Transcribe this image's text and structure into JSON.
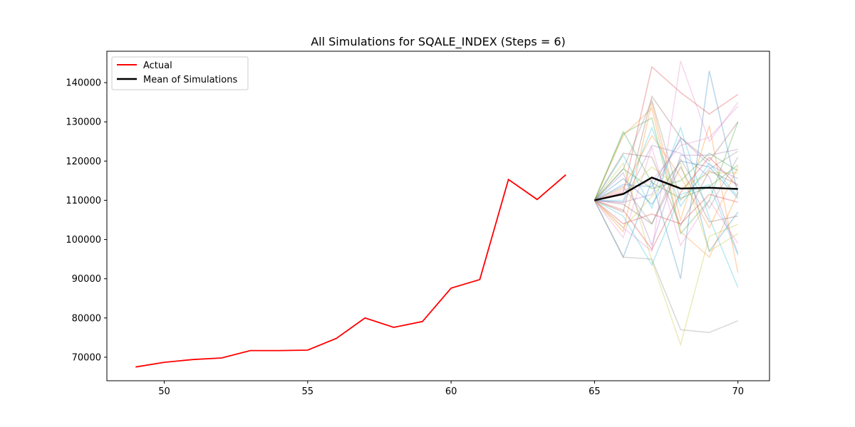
{
  "chart_data": {
    "type": "line",
    "title": "All Simulations for SQALE_INDEX (Steps = 6)",
    "xlabel": "",
    "ylabel": "",
    "xlim": [
      48,
      71.1
    ],
    "ylim": [
      64000,
      148000
    ],
    "x_ticks": [
      50,
      55,
      60,
      65,
      70
    ],
    "y_ticks": [
      70000,
      80000,
      90000,
      100000,
      110000,
      120000,
      130000,
      140000
    ],
    "legend": {
      "position": "top-left",
      "entries": [
        "Actual",
        "Mean of Simulations"
      ]
    },
    "grid": false,
    "actual": {
      "name": "Actual",
      "color": "#ff0000",
      "x": [
        49,
        50,
        51,
        52,
        53,
        54,
        55,
        56,
        57,
        58,
        59,
        60,
        61,
        62,
        63,
        64
      ],
      "y": [
        67500,
        68700,
        69400,
        69800,
        71700,
        71700,
        71800,
        74800,
        80000,
        77600,
        79100,
        87600,
        89800,
        115300,
        110200,
        116500
      ]
    },
    "mean": {
      "name": "Mean of Simulations",
      "color": "#000000",
      "x": [
        65,
        66,
        67,
        68,
        69,
        70
      ],
      "y": [
        110000,
        111600,
        115800,
        113000,
        113200,
        112900
      ]
    },
    "simulations": {
      "x": [
        65,
        66,
        67,
        68,
        69,
        70
      ],
      "series": [
        {
          "color": "#1f77b4",
          "values": [
            110000,
            95500,
            115000,
            90000,
            143000,
            111500
          ]
        },
        {
          "color": "#ff7f0e",
          "values": [
            110000,
            102000,
            135000,
            105000,
            129000,
            91500
          ]
        },
        {
          "color": "#2ca02c",
          "values": [
            110000,
            127000,
            131000,
            101500,
            110000,
            130000
          ]
        },
        {
          "color": "#d62728",
          "values": [
            110000,
            112000,
            144000,
            137500,
            132000,
            137000
          ]
        },
        {
          "color": "#9467bd",
          "values": [
            110000,
            109500,
            124000,
            122000,
            116000,
            96500
          ]
        },
        {
          "color": "#8c564b",
          "values": [
            110000,
            107000,
            136500,
            126000,
            120000,
            130000
          ]
        },
        {
          "color": "#e377c2",
          "values": [
            110000,
            103000,
            97000,
            145500,
            125000,
            135000
          ]
        },
        {
          "color": "#7f7f7f",
          "values": [
            110000,
            95500,
            95000,
            77000,
            76300,
            79300
          ]
        },
        {
          "color": "#bcbd22",
          "values": [
            110000,
            119500,
            94500,
            73200,
            100800,
            103900
          ]
        },
        {
          "color": "#17becf",
          "values": [
            110000,
            121500,
            108000,
            128500,
            105500,
            87800
          ]
        },
        {
          "color": "#1f77b4",
          "values": [
            110000,
            114000,
            113500,
            125500,
            97000,
            107000
          ]
        },
        {
          "color": "#ff7f0e",
          "values": [
            110000,
            126500,
            133500,
            102000,
            95500,
            112000
          ]
        },
        {
          "color": "#2ca02c",
          "values": [
            110000,
            118000,
            113000,
            115000,
            122000,
            117500
          ]
        },
        {
          "color": "#d62728",
          "values": [
            110000,
            104000,
            106500,
            104000,
            111500,
            109500
          ]
        },
        {
          "color": "#9467bd",
          "values": [
            110000,
            117000,
            98500,
            121500,
            121500,
            123000
          ]
        },
        {
          "color": "#8c564b",
          "values": [
            110000,
            109000,
            104000,
            118500,
            104500,
            106000
          ]
        },
        {
          "color": "#e377c2",
          "values": [
            110000,
            100500,
            123500,
            98500,
            110000,
            99000
          ]
        },
        {
          "color": "#7f7f7f",
          "values": [
            110000,
            118000,
            135500,
            110000,
            118000,
            122500
          ]
        },
        {
          "color": "#bcbd22",
          "values": [
            110000,
            103000,
            111000,
            119500,
            97000,
            101500
          ]
        },
        {
          "color": "#17becf",
          "values": [
            110000,
            106000,
            93500,
            111500,
            114000,
            96000
          ]
        },
        {
          "color": "#1f77b4",
          "values": [
            110000,
            115500,
            109000,
            120000,
            118500,
            110500
          ]
        },
        {
          "color": "#ff7f0e",
          "values": [
            110000,
            113000,
            126500,
            116000,
            103000,
            118500
          ]
        },
        {
          "color": "#2ca02c",
          "values": [
            110000,
            127500,
            114500,
            110500,
            113500,
            119000
          ]
        },
        {
          "color": "#d62728",
          "values": [
            110000,
            107500,
            97500,
            112000,
            121000,
            113500
          ]
        },
        {
          "color": "#9467bd",
          "values": [
            110000,
            109500,
            111500,
            126000,
            119000,
            115500
          ]
        },
        {
          "color": "#8c564b",
          "values": [
            110000,
            122000,
            121000,
            103500,
            117500,
            114000
          ]
        },
        {
          "color": "#e377c2",
          "values": [
            110000,
            112500,
            115000,
            124000,
            126000,
            134000
          ]
        },
        {
          "color": "#7f7f7f",
          "values": [
            110000,
            113500,
            104000,
            120500,
            108000,
            121000
          ]
        },
        {
          "color": "#bcbd22",
          "values": [
            110000,
            111500,
            118500,
            113000,
            117000,
            117000
          ]
        },
        {
          "color": "#17becf",
          "values": [
            110000,
            110000,
            128500,
            108500,
            119500,
            111000
          ]
        }
      ]
    }
  }
}
